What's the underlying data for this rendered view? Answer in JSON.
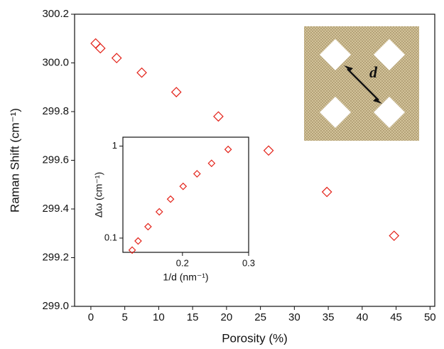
{
  "chart_data": [
    {
      "type": "scatter",
      "x_label": "Porosity (%)",
      "y_label": "Raman Shift (cm⁻¹)",
      "x": [
        0.7,
        1.4,
        3.8,
        7.5,
        12.6,
        18.8,
        26.2,
        34.8,
        44.7
      ],
      "values": [
        300.08,
        300.06,
        300.02,
        299.96,
        299.88,
        299.78,
        299.64,
        299.47,
        299.29
      ],
      "color": "#e32219",
      "marker": "diamond",
      "xlim": [
        -2.4,
        50.7
      ],
      "ylim": [
        299.0,
        300.2
      ],
      "xticks": [
        0,
        5,
        10,
        15,
        20,
        25,
        30,
        35,
        40,
        45,
        50
      ],
      "yticks": [
        {
          "value": 299.0,
          "label": "299.0"
        },
        299.2,
        299.4,
        299.6,
        299.8,
        {
          "value": 300.0,
          "label": "300.0"
        },
        300.2
      ]
    },
    {
      "type": "scatter",
      "x_label": "1/d (nm⁻¹)",
      "y_label": "Δω (cm⁻¹)",
      "x": [
        0.124,
        0.133,
        0.148,
        0.165,
        0.182,
        0.201,
        0.222,
        0.244,
        0.269
      ],
      "values": [
        0.074,
        0.093,
        0.133,
        0.193,
        0.265,
        0.365,
        0.5,
        0.65,
        0.92
      ],
      "color": "#e32219",
      "marker": "diamond",
      "y_log": true,
      "xlim": [
        0.11,
        0.3
      ],
      "ylim": [
        0.07,
        1.25
      ],
      "xticks": [
        0.2,
        0.3
      ],
      "yticks": [
        0.1,
        1
      ]
    }
  ],
  "image_label": "d"
}
